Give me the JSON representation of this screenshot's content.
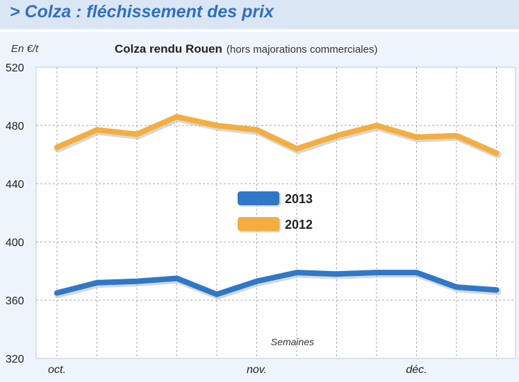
{
  "header": {
    "title": "> Colza : fléchissement des prix"
  },
  "chart_data": {
    "type": "line",
    "title": "Colza rendu Rouen",
    "subtitle": "(hors majorations commerciales)",
    "ylabel": "En €/t",
    "xlabel": "Semaines",
    "ylim": [
      320,
      520
    ],
    "yticks": [
      320,
      360,
      400,
      440,
      480,
      520
    ],
    "xtick_labels": [
      {
        "label": "oct.",
        "index": 0
      },
      {
        "label": "nov.",
        "index": 5
      },
      {
        "label": "déc.",
        "index": 9
      }
    ],
    "weeks": 12,
    "grid": true,
    "legend_position": "center",
    "series": [
      {
        "name": "2013",
        "color": "#2e78c7",
        "values": [
          365,
          372,
          373,
          375,
          364,
          373,
          379,
          378,
          379,
          379,
          369,
          367
        ]
      },
      {
        "name": "2012",
        "color": "#f4ae3f",
        "values": [
          465,
          477,
          474,
          486,
          480,
          477,
          464,
          473,
          480,
          472,
          473,
          461
        ]
      }
    ]
  }
}
